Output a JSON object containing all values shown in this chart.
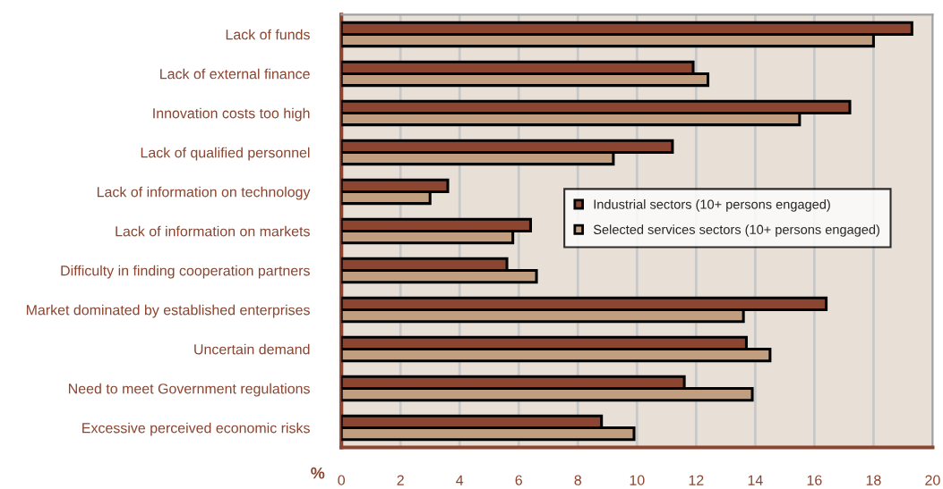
{
  "chart_data": {
    "type": "bar",
    "orientation": "horizontal",
    "xlabel": "%",
    "categories": [
      "Lack of funds",
      "Lack of external finance",
      "Innovation costs too high",
      "Lack of qualified personnel",
      "Lack of information on technology",
      "Lack of information on markets",
      "Difficulty in finding cooperation partners",
      "Market dominated by established enterprises",
      "Uncertain demand",
      "Need to meet Government regulations",
      "Excessive perceived economic risks"
    ],
    "series": [
      {
        "name": "Industrial sectors (10+ persons engaged)",
        "color": "#8b4530",
        "values": [
          19.3,
          11.9,
          17.2,
          11.2,
          3.6,
          6.4,
          5.6,
          16.4,
          13.7,
          11.6,
          8.8
        ]
      },
      {
        "name": "Selected services sectors (10+ persons engaged)",
        "color": "#c19e80",
        "values": [
          18.0,
          12.4,
          15.5,
          9.2,
          3.0,
          5.8,
          6.6,
          13.6,
          14.5,
          13.9,
          9.9
        ]
      }
    ],
    "xlim": [
      0,
      20
    ],
    "xticks": [
      0,
      2,
      4,
      6,
      8,
      10,
      12,
      14,
      16,
      18,
      20
    ],
    "grid": "x",
    "legend": "right"
  }
}
